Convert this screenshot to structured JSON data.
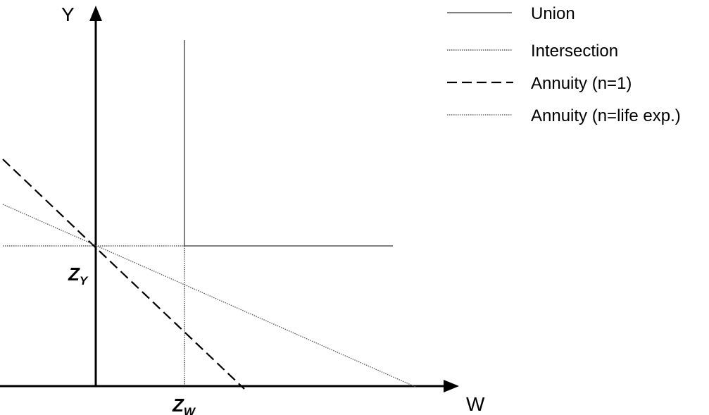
{
  "axes": {
    "y_label": "Y",
    "x_label": "W"
  },
  "markers": {
    "zy_main": "Z",
    "zy_sub": "Y",
    "zw_main": "Z",
    "zw_sub": "W"
  },
  "legend": [
    {
      "label": "Union",
      "style": "solid"
    },
    {
      "label": "Intersection",
      "style": "dotted"
    },
    {
      "label": "Annuity (n=1)",
      "style": "dashed"
    },
    {
      "label": "Annuity (n=life exp.)",
      "style": "dotted-gray"
    }
  ],
  "colors": {
    "ink": "#000000",
    "annuity_life_exp": "#555555",
    "background": "#ffffff"
  }
}
